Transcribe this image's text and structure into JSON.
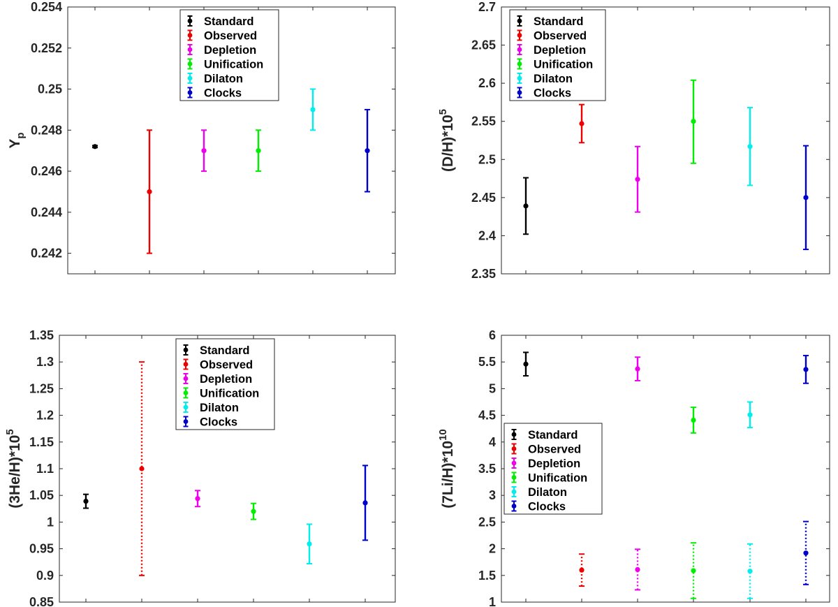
{
  "series_colors": {
    "Standard": "#000000",
    "Observed": "#ee0000",
    "Depletion": "#ee00ee",
    "Unification": "#00ee00",
    "Dilaton": "#00eeee",
    "Clocks": "#0000cc"
  },
  "chart_data": [
    {
      "type": "errorbar",
      "panel": "top-left",
      "ylabel": "Y",
      "ylabel_subscript": "p",
      "ylim": [
        0.241,
        0.254
      ],
      "yticks": [
        0.242,
        0.244,
        0.246,
        0.248,
        0.25,
        0.252,
        0.254
      ],
      "ytick_labels": [
        "0.242",
        "0.244",
        "0.246",
        "0.248",
        "0.25",
        "0.252",
        "0.254"
      ],
      "legend_position": "top-center",
      "legend": [
        "Standard",
        "Observed",
        "Depletion",
        "Unification",
        "Dilaton",
        "Clocks"
      ],
      "series": [
        {
          "name": "Standard",
          "value": 0.2472,
          "low": 0.24715,
          "high": 0.24725,
          "style": "solid"
        },
        {
          "name": "Observed",
          "value": 0.245,
          "low": 0.242,
          "high": 0.248,
          "style": "solid"
        },
        {
          "name": "Depletion",
          "value": 0.247,
          "low": 0.246,
          "high": 0.248,
          "style": "solid"
        },
        {
          "name": "Unification",
          "value": 0.247,
          "low": 0.246,
          "high": 0.248,
          "style": "solid"
        },
        {
          "name": "Dilaton",
          "value": 0.249,
          "low": 0.248,
          "high": 0.25,
          "style": "solid"
        },
        {
          "name": "Clocks",
          "value": 0.247,
          "low": 0.245,
          "high": 0.249,
          "style": "solid"
        }
      ]
    },
    {
      "type": "errorbar",
      "panel": "top-right",
      "ylabel": "(D/H)*10",
      "ylabel_superscript": "5",
      "ylim": [
        2.35,
        2.7
      ],
      "yticks": [
        2.35,
        2.4,
        2.45,
        2.5,
        2.55,
        2.6,
        2.65,
        2.7
      ],
      "ytick_labels": [
        "2.35",
        "2.4",
        "2.45",
        "2.5",
        "2.55",
        "2.6",
        "2.65",
        "2.7"
      ],
      "legend_position": "top-left",
      "legend": [
        "Standard",
        "Observed",
        "Depletion",
        "Unification",
        "Dilaton",
        "Clocks"
      ],
      "series": [
        {
          "name": "Standard",
          "value": 2.439,
          "low": 2.402,
          "high": 2.476,
          "style": "solid"
        },
        {
          "name": "Observed",
          "value": 2.547,
          "low": 2.522,
          "high": 2.572,
          "style": "solid"
        },
        {
          "name": "Depletion",
          "value": 2.474,
          "low": 2.431,
          "high": 2.517,
          "style": "solid"
        },
        {
          "name": "Unification",
          "value": 2.55,
          "low": 2.495,
          "high": 2.604,
          "style": "solid"
        },
        {
          "name": "Dilaton",
          "value": 2.517,
          "low": 2.466,
          "high": 2.568,
          "style": "solid"
        },
        {
          "name": "Clocks",
          "value": 2.45,
          "low": 2.382,
          "high": 2.518,
          "style": "solid"
        }
      ]
    },
    {
      "type": "errorbar",
      "panel": "bottom-left",
      "ylabel": "(3He/H)*10",
      "ylabel_superscript": "5",
      "ylim": [
        0.85,
        1.35
      ],
      "yticks": [
        0.85,
        0.9,
        0.95,
        1.0,
        1.05,
        1.1,
        1.15,
        1.2,
        1.25,
        1.3,
        1.35
      ],
      "ytick_labels": [
        "0.85",
        "0.9",
        "0.95",
        "1",
        "1.05",
        "1.1",
        "1.15",
        "1.2",
        "1.25",
        "1.3",
        "1.35"
      ],
      "legend_position": "top-center",
      "legend": [
        "Standard",
        "Observed",
        "Depletion",
        "Unification",
        "Dilaton",
        "Clocks"
      ],
      "series": [
        {
          "name": "Standard",
          "value": 1.039,
          "low": 1.026,
          "high": 1.052,
          "style": "solid"
        },
        {
          "name": "Observed",
          "value": 1.1,
          "low": 0.9,
          "high": 1.3,
          "style": "dotted"
        },
        {
          "name": "Depletion",
          "value": 1.044,
          "low": 1.029,
          "high": 1.059,
          "style": "solid"
        },
        {
          "name": "Unification",
          "value": 1.02,
          "low": 1.005,
          "high": 1.035,
          "style": "solid"
        },
        {
          "name": "Dilaton",
          "value": 0.959,
          "low": 0.922,
          "high": 0.996,
          "style": "solid"
        },
        {
          "name": "Clocks",
          "value": 1.036,
          "low": 0.966,
          "high": 1.106,
          "style": "solid"
        }
      ]
    },
    {
      "type": "errorbar",
      "panel": "bottom-right",
      "ylabel": "(7Li/H)*10",
      "ylabel_superscript": "10",
      "ylim": [
        1,
        6
      ],
      "yticks": [
        1,
        1.5,
        2,
        2.5,
        3,
        3.5,
        4,
        4.5,
        5,
        5.5,
        6
      ],
      "ytick_labels": [
        "1",
        "1.5",
        "2",
        "2.5",
        "3",
        "3.5",
        "4",
        "4.5",
        "5",
        "5.5",
        "6"
      ],
      "legend_position": "middle-left",
      "legend": [
        "Standard",
        "Observed",
        "Depletion",
        "Unification",
        "Dilaton",
        "Clocks"
      ],
      "series": [
        {
          "name": "Standard",
          "value": 5.46,
          "low": 5.24,
          "high": 5.68,
          "style": "solid"
        },
        {
          "name": "Observed",
          "value": 1.6,
          "low": 1.3,
          "high": 1.9,
          "style": "dotted"
        },
        {
          "name": "Depletion",
          "value": 5.37,
          "low": 5.15,
          "high": 5.59,
          "style": "solid"
        },
        {
          "name": "Depletion",
          "value": 1.61,
          "low": 1.23,
          "high": 1.99,
          "style": "dotted"
        },
        {
          "name": "Unification",
          "value": 4.41,
          "low": 4.17,
          "high": 4.65,
          "style": "solid"
        },
        {
          "name": "Unification",
          "value": 1.59,
          "low": 1.07,
          "high": 2.11,
          "style": "dotted"
        },
        {
          "name": "Dilaton",
          "value": 4.51,
          "low": 4.27,
          "high": 4.75,
          "style": "solid"
        },
        {
          "name": "Dilaton",
          "value": 1.58,
          "low": 1.07,
          "high": 2.09,
          "style": "dotted"
        },
        {
          "name": "Clocks",
          "value": 5.36,
          "low": 5.1,
          "high": 5.62,
          "style": "solid"
        },
        {
          "name": "Clocks",
          "value": 1.92,
          "low": 1.33,
          "high": 2.51,
          "style": "dotted"
        }
      ]
    }
  ]
}
